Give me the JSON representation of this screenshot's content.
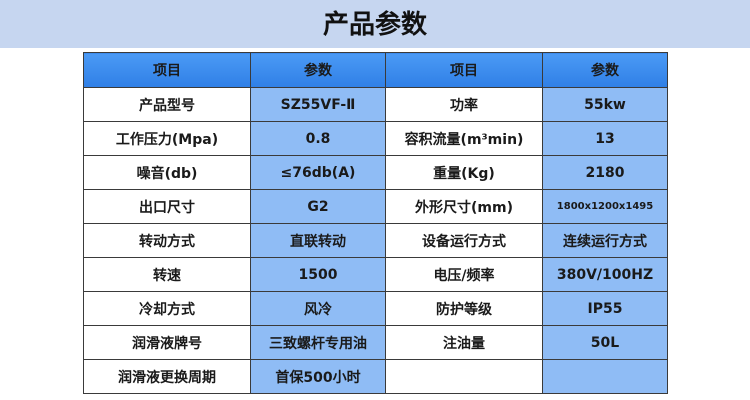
{
  "title": "产品参数",
  "header": [
    "项目",
    "参数",
    "项目",
    "参数"
  ],
  "rows": [
    [
      "产品型号",
      "SZ55VF-Ⅱ",
      "功率",
      "55kw"
    ],
    [
      "工作压力(Mpa)",
      "0.8",
      "容积流量(m³min)",
      "13"
    ],
    [
      "噪音(db)",
      "≤76db(A)",
      "重量(Kg)",
      "2180"
    ],
    [
      "出口尺寸",
      "G2",
      "外形尺寸(mm)",
      "1800x1200x1495"
    ],
    [
      "转动方式",
      "直联转动",
      "设备运行方式",
      "连续运行方式"
    ],
    [
      "转速",
      "1500",
      "电压/频率",
      "380V/100HZ"
    ],
    [
      "冷却方式",
      "风冷",
      "防护等级",
      "IP55"
    ],
    [
      "润滑液牌号",
      "三致螺杆专用油",
      "注油量",
      "50L"
    ],
    [
      "润滑液更换周期",
      "首保500小时",
      "",
      ""
    ]
  ],
  "colors": {
    "header": "#3a8ef0",
    "param": "#8fbcf5",
    "band": "#c6d6f0"
  }
}
